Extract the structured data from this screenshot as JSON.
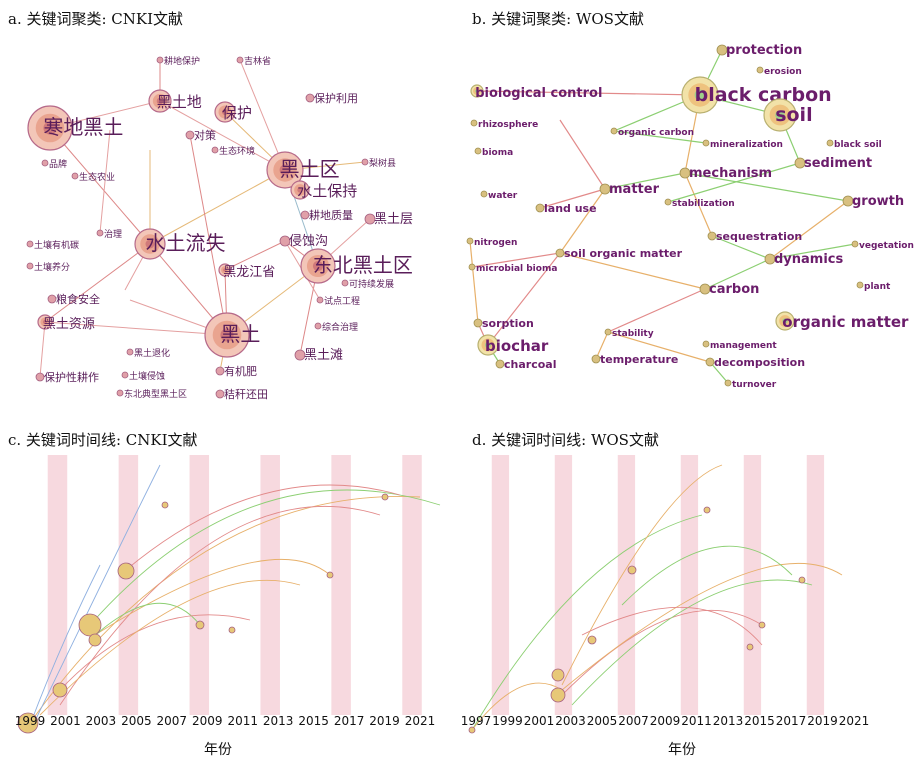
{
  "panels": {
    "a": {
      "title": "a. 关键词聚类: CNKI文献",
      "nodes": [
        [
          "寒地黑土",
          50,
          128,
          22,
          "#c77890"
        ],
        [
          "黑土地",
          160,
          101,
          11,
          "#c77890"
        ],
        [
          "保护",
          225,
          112,
          10,
          "#c77890"
        ],
        [
          "黑土区",
          285,
          170,
          18,
          "#c77890"
        ],
        [
          "水土保持",
          300,
          190,
          9,
          "#c77890"
        ],
        [
          "水土流失",
          150,
          244,
          15,
          "#c77890"
        ],
        [
          "东北黑土区",
          318,
          266,
          17,
          "#c77890"
        ],
        [
          "黑土",
          227,
          335,
          22,
          "#c77890"
        ],
        [
          "黑龙江省",
          225,
          270,
          6,
          "#c77890"
        ],
        [
          "黑土资源",
          45,
          322,
          7,
          "#c77890"
        ],
        [
          "侵蚀沟",
          285,
          241,
          5,
          "#c77890"
        ],
        [
          "黑土层",
          370,
          219,
          5,
          "#c77890"
        ],
        [
          "耕地质量",
          305,
          215,
          4,
          "#c77890"
        ],
        [
          "保护利用",
          310,
          98,
          4,
          "#c77890"
        ],
        [
          "黑土滩",
          300,
          355,
          5,
          "#c77890"
        ],
        [
          "有机肥",
          220,
          371,
          4,
          "#c77890"
        ],
        [
          "秸秆还田",
          220,
          394,
          4,
          "#c77890"
        ],
        [
          "保护性耕作",
          40,
          377,
          4,
          "#c77890"
        ],
        [
          "粮食安全",
          52,
          299,
          4,
          "#c77890"
        ],
        [
          "对策",
          190,
          135,
          4,
          "#c77890"
        ],
        [
          "吉林省",
          240,
          60,
          3,
          "#c77890"
        ],
        [
          "耕地保护",
          160,
          60,
          3,
          "#c77890"
        ],
        [
          "治理",
          100,
          233,
          3,
          "#c77890"
        ],
        [
          "品牌",
          45,
          163,
          3,
          "#c77890"
        ],
        [
          "生态农业",
          75,
          176,
          3,
          "#c77890"
        ],
        [
          "可持续发展",
          345,
          283,
          3,
          "#c77890"
        ],
        [
          "综合治理",
          318,
          326,
          3,
          "#c77890"
        ],
        [
          "试点工程",
          320,
          300,
          3,
          "#c77890"
        ],
        [
          "黑土退化",
          130,
          352,
          3,
          "#c77890"
        ],
        [
          "土壤侵蚀",
          125,
          375,
          3,
          "#c77890"
        ],
        [
          "东北典型黑土区",
          120,
          393,
          3,
          "#c77890"
        ],
        [
          "梨树县",
          365,
          162,
          3,
          "#c77890"
        ],
        [
          "生态环境",
          215,
          150,
          3,
          "#c77890"
        ],
        [
          "土壤有机碳",
          30,
          244,
          3,
          "#c77890"
        ],
        [
          "土壤养分",
          30,
          266,
          3,
          "#c77890"
        ]
      ]
    },
    "b": {
      "title": "b. 关键词聚类: WOS文献",
      "nodes": [
        [
          "black carbon",
          700,
          95,
          18,
          "#d9c37a"
        ],
        [
          "soil",
          780,
          115,
          16,
          "#d9c37a"
        ],
        [
          "biochar",
          488,
          345,
          10,
          "#d9c37a"
        ],
        [
          "organic matter",
          785,
          321,
          9,
          "#d9c37a"
        ],
        [
          "biological control",
          477,
          91,
          6,
          "#d9c37a"
        ],
        [
          "protection",
          722,
          50,
          5,
          "#d9c37a"
        ],
        [
          "sediment",
          800,
          163,
          5,
          "#d9c37a"
        ],
        [
          "growth",
          848,
          201,
          5,
          "#d9c37a"
        ],
        [
          "mechanism",
          685,
          173,
          5,
          "#d9c37a"
        ],
        [
          "matter",
          605,
          189,
          5,
          "#d9c37a"
        ],
        [
          "dynamics",
          770,
          259,
          5,
          "#d9c37a"
        ],
        [
          "carbon",
          705,
          289,
          5,
          "#d9c37a"
        ],
        [
          "sequestration",
          712,
          236,
          4,
          "#d9c37a"
        ],
        [
          "decomposition",
          710,
          362,
          4,
          "#d9c37a"
        ],
        [
          "temperature",
          596,
          359,
          4,
          "#d9c37a"
        ],
        [
          "charcoal",
          500,
          364,
          4,
          "#d9c37a"
        ],
        [
          "sorption",
          478,
          323,
          4,
          "#d9c37a"
        ],
        [
          "soil organic matter",
          560,
          253,
          4,
          "#d9c37a"
        ],
        [
          "land use",
          540,
          208,
          4,
          "#d9c37a"
        ],
        [
          "stabilization",
          668,
          202,
          3,
          "#d9c37a"
        ],
        [
          "organic carbon",
          614,
          131,
          3,
          "#d9c37a"
        ],
        [
          "mineralization",
          706,
          143,
          3,
          "#d9c37a"
        ],
        [
          "nitrogen",
          470,
          241,
          3,
          "#d9c37a"
        ],
        [
          "microbial bioma",
          472,
          267,
          3,
          "#d9c37a"
        ],
        [
          "water",
          484,
          194,
          3,
          "#d9c37a"
        ],
        [
          "bioma",
          478,
          151,
          3,
          "#d9c37a"
        ],
        [
          "rhizosphere",
          474,
          123,
          3,
          "#d9c37a"
        ],
        [
          "stability",
          608,
          332,
          3,
          "#d9c37a"
        ],
        [
          "management",
          706,
          344,
          3,
          "#d9c37a"
        ],
        [
          "vegetation",
          855,
          244,
          3,
          "#d9c37a"
        ],
        [
          "plant",
          860,
          285,
          3,
          "#d9c37a"
        ],
        [
          "erosion",
          760,
          70,
          3,
          "#d9c37a"
        ],
        [
          "black soil",
          830,
          143,
          3,
          "#d9c37a"
        ],
        [
          "turnover",
          728,
          383,
          3,
          "#d9c37a"
        ]
      ]
    },
    "c": {
      "title": "c. 关键词时间线: CNKI文献",
      "xlabel": "年份",
      "years": [
        "1999",
        "2001",
        "2003",
        "2005",
        "2007",
        "2009",
        "2011",
        "2013",
        "2015",
        "2017",
        "2019",
        "2021"
      ]
    },
    "d": {
      "title": "d. 关键词时间线: WOS文献",
      "xlabel": "年份",
      "years": [
        "1997",
        "1999",
        "2001",
        "2003",
        "2005",
        "2007",
        "2009",
        "2011",
        "2013",
        "2015",
        "2017",
        "2019",
        "2021"
      ]
    }
  },
  "colors": {
    "stripe": "#f7d9df",
    "edge_red": "#e28a8a",
    "edge_green": "#8ccf72",
    "edge_orange": "#e7b06a",
    "edge_blue": "#8fb0e0",
    "cn_text": "#5a1e5a",
    "en_text": "#6b1d6b"
  }
}
